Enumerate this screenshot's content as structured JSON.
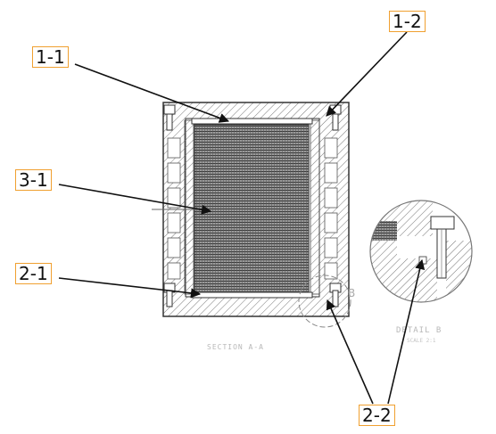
{
  "callouts": {
    "c11": "1-1",
    "c12": "1-2",
    "c31": "3-1",
    "c21": "2-1",
    "c22": "2-2"
  },
  "drawing_text": {
    "section_title": "SECTION A-A",
    "detail_letter": "B",
    "detail_title": "DETAIL B",
    "detail_scale": "SCALE 2:1"
  },
  "colors": {
    "callout_border": "#f0a030",
    "line": "#222222",
    "hatch": "#555555"
  }
}
